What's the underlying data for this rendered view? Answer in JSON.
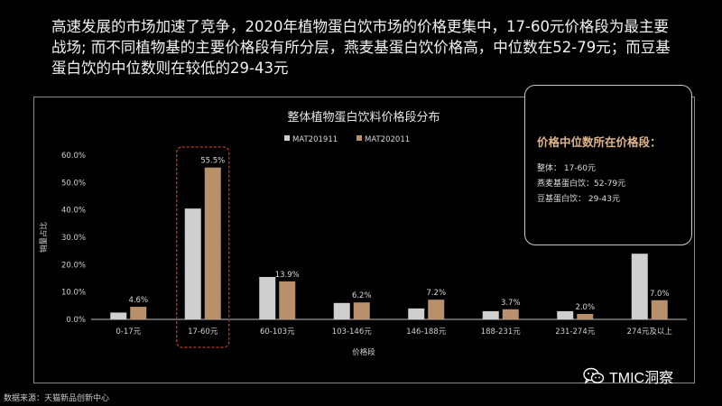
{
  "headline": "高速发展的市场加速了竞争，2020年植物蛋白饮市场的价格更集中，17-60元价格段为最主要战场; 而不同植物基的主要价格段有所分层，燕麦基蛋白饮价格高，中位数在52-79元；而豆基蛋白饮的中位数则在较低的29-43元",
  "callout": {
    "title": "价格中位数所在价格段：",
    "lines": [
      "整体： 17-60元",
      "燕麦基蛋白饮：52-79元",
      "豆基蛋白饮： 29-43元"
    ]
  },
  "source": "数据来源：天猫新品创新中心",
  "brand": "TMIC洞察",
  "colors": {
    "series1": "#cfcfcf",
    "series2": "#b8906c",
    "highlight": "#c0392b",
    "accent": "#e0b48a"
  },
  "chart_data": {
    "type": "bar",
    "title": "整体植物蛋白饮料价格段分布",
    "xlabel": "价格段",
    "ylabel": "销量占比",
    "categories": [
      "0-17元",
      "17-60元",
      "60-103元",
      "103-146元",
      "146-188元",
      "188-231元",
      "231-274元",
      "274元及以上"
    ],
    "series": [
      {
        "name": "MAT201911",
        "values": [
          2.5,
          40.5,
          15.5,
          6.0,
          4.0,
          3.0,
          3.0,
          24.0
        ]
      },
      {
        "name": "MAT202011",
        "values": [
          4.6,
          55.5,
          13.9,
          6.2,
          7.2,
          3.7,
          2.0,
          7.0
        ],
        "labels": [
          "4.6%",
          "55.5%",
          "13.9%",
          "6.2%",
          "7.2%",
          "3.7%",
          "2.0%",
          "7.0%"
        ]
      }
    ],
    "ylim": [
      0,
      60
    ],
    "yticks": [
      "0.0%",
      "10.0%",
      "20.0%",
      "30.0%",
      "40.0%",
      "50.0%",
      "60.0%"
    ],
    "highlight_category": "17-60元",
    "legend": "top-center"
  }
}
